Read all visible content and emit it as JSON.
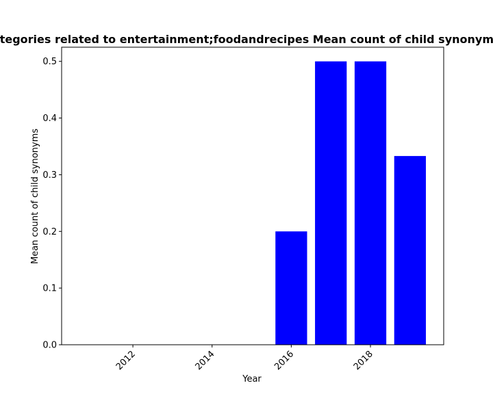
{
  "chart_data": {
    "type": "bar",
    "title": "Number of categories related to entertainment;foodandrecipes Mean count of child synonyms in prior years",
    "xlabel": "Year",
    "ylabel": "Mean count of child synonyms",
    "x": [
      2016,
      2017,
      2018,
      2019
    ],
    "values": [
      0.2,
      0.5,
      0.5,
      0.333
    ],
    "bar_color": "#0000ff",
    "xlim": [
      2010.2,
      2019.85
    ],
    "ylim": [
      0,
      0.525
    ],
    "xticks": [
      2012,
      2014,
      2016,
      2018
    ],
    "xtick_labels": [
      "2012",
      "2014",
      "2016",
      "2018"
    ],
    "yticks": [
      0.0,
      0.1,
      0.2,
      0.3,
      0.4,
      0.5
    ],
    "ytick_labels": [
      "0.0",
      "0.1",
      "0.2",
      "0.3",
      "0.4",
      "0.5"
    ],
    "grid": false
  }
}
